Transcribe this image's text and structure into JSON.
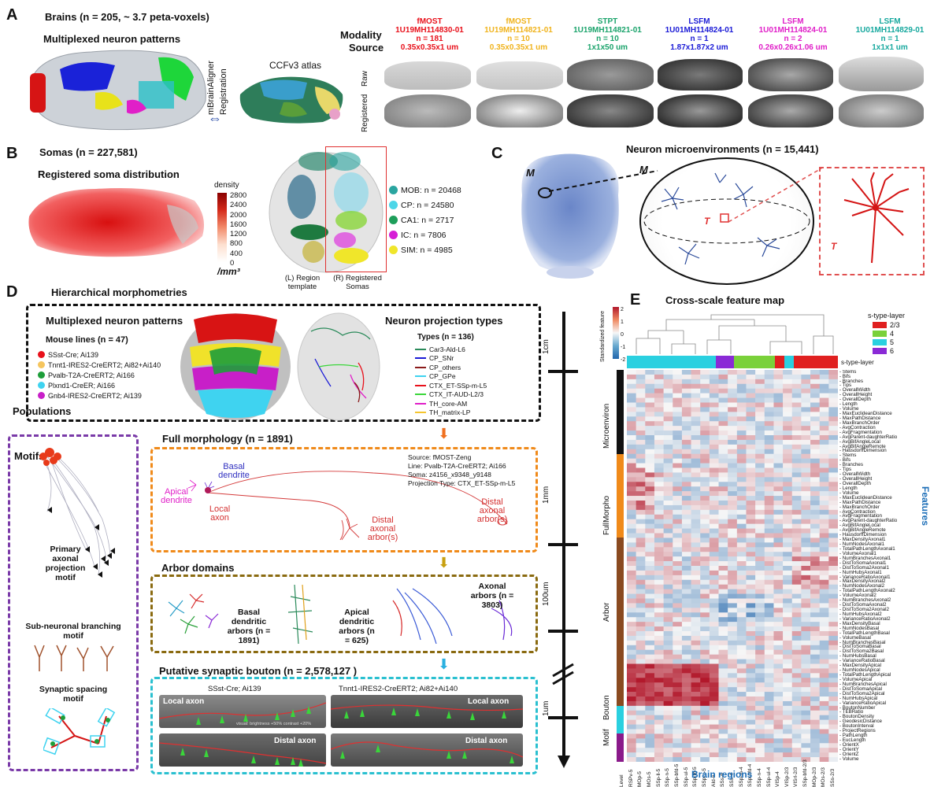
{
  "panels": {
    "A": {
      "letter": "A",
      "brains_title": "Brains (n = 205, ~ 3.7 peta-voxels)",
      "multiplexed": "Multiplexed neuron patterns",
      "mbrain": "mBrainAligner",
      "registration": "Registration",
      "atlas": "CCFv3 atlas",
      "modality": "Modality",
      "source": "Source",
      "raw": "Raw",
      "registered": "Registered",
      "sources": [
        {
          "modality": "fMOST",
          "id": "1U19MH114830-01",
          "n": "n = 181",
          "res": "0.35x0.35x1 um",
          "color": "#e8111b"
        },
        {
          "modality": "fMOST",
          "id": "1U19MH114821-01",
          "n": "n = 10",
          "res": "0.35x0.35x1 um",
          "color": "#f0b31c"
        },
        {
          "modality": "STPT",
          "id": "1U19MH114821-01",
          "n": "n = 10",
          "res": "1x1x50 um",
          "color": "#1aa36b"
        },
        {
          "modality": "LSFM",
          "id": "1U01MH114824-01",
          "n": "n = 1",
          "res": "1.87x1.87x2 um",
          "color": "#1a1ad6"
        },
        {
          "modality": "LSFM",
          "id": "1U01MH114824-01",
          "n": "n = 2",
          "res": "0.26x0.26x1.06 um",
          "color": "#e01fc8"
        },
        {
          "modality": "LSFM",
          "id": "1U01MH114829-01",
          "n": "n = 1",
          "res": "1x1x1 um",
          "color": "#16a89e"
        }
      ]
    },
    "B": {
      "letter": "B",
      "somas_title": "Somas (n = 227,581)",
      "registered_title": "Registered soma distribution",
      "density": "density",
      "ticks": [
        "2800",
        "2400",
        "2000",
        "1600",
        "1200",
        "800",
        "400",
        "0"
      ],
      "unit": "/mm³",
      "left_label": "(L) Region template",
      "right_label": "(R) Registered Somas",
      "regions": [
        {
          "label": "MOB: n = 20468",
          "color": "#2aa5a0"
        },
        {
          "label": "CP: n = 24580",
          "color": "#4dd6e8"
        },
        {
          "label": "CA1: n = 2717",
          "color": "#1e9e5a"
        },
        {
          "label": "IC: n = 7806",
          "color": "#d61fd6"
        },
        {
          "label": "SIM: n = 4985",
          "color": "#f0e62a"
        }
      ]
    },
    "C": {
      "letter": "C",
      "title": "Neuron microenvironments (n = 15,441)",
      "m1": "M",
      "m2": "M",
      "t1": "T",
      "t2": "T"
    },
    "D": {
      "letter": "D",
      "title": "Hierarchical morphometries",
      "multiplexed": "Multiplexed neuron patterns",
      "mouse_lines_title": "Mouse lines (n = 47)",
      "mouse_lines": [
        {
          "label": "SSst-Cre; Ai139",
          "color": "#e8111b"
        },
        {
          "label": "Tnnt1-IRES2-CreERT2; Ai82+Ai140",
          "color": "#f5c55e"
        },
        {
          "label": "Pvalb-T2A-CreERT2; Ai166",
          "color": "#1e9e3a"
        },
        {
          "label": "Plxnd1-CreER; Ai166",
          "color": "#3fd3f0"
        },
        {
          "label": "Gnb4-IRES2-CreERT2; Ai139",
          "color": "#c81fc8"
        }
      ],
      "populations": "Populations",
      "projection_title": "Neuron projection types",
      "types_title": "Types (n = 136)",
      "types": [
        {
          "label": "Car3-Ald-L6",
          "color": "#2a8a5a"
        },
        {
          "label": "CP_SNr",
          "color": "#1a1ad6"
        },
        {
          "label": "CP_others",
          "color": "#8a1a1a"
        },
        {
          "label": "CP_GPe",
          "color": "#3fd3f0"
        },
        {
          "label": "CTX_ET-SSp-m-L5",
          "color": "#e8111b"
        },
        {
          "label": "CTX_IT-AUD-L2/3",
          "color": "#3ad63a"
        },
        {
          "label": "TH_core-AM",
          "color": "#e01fc8"
        },
        {
          "label": "TH_matrix-LP",
          "color": "#f5c52e"
        }
      ],
      "motifs": "Motifs",
      "primary_motif": "Primary axonal projection motif",
      "sub_motif": "Sub-neuronal branching motif",
      "synaptic_motif": "Synaptic spacing motif",
      "full_title": "Full morphology (n = 1891)",
      "apical": "Apical dendrite",
      "basal": "Basal dendrite",
      "local_axon": "Local axon",
      "distal_arbor": "Distal axonal arbor(s)",
      "distal_arbor2": "Distal axonal arbor(s)",
      "info": [
        "Source: fMOST-Zeng",
        "Line: Pvalb-T2A-CreERT2; Ai166",
        "Soma: z4156_x9348_y9148",
        "Projection Type: CTX_ET-SSp-m-L5"
      ],
      "arbor_title": "Arbor domains",
      "basal_arbors": "Basal dendritic arbors (n = 1891)",
      "apical_arbors": "Apical dendritic arbors (n = 625)",
      "axonal_arbors": "Axonal arbors (n = 3803)",
      "bouton_title": "Putative synaptic bouton (n = 2,578,127 )",
      "bouton_left_line": "SSst-Cre; Ai139",
      "bouton_right_line": "Tnnt1-IRES2-CreERT2; Ai82+Ai140",
      "local_axon_a": "Local axon",
      "local_axon_b": "Local axon",
      "distal_axon_a": "Distal axon",
      "distal_axon_b": "Distal axon",
      "visual_note": "visual: brightness +50% contrast +20%",
      "scale": [
        "1cm",
        "1mm",
        "100um",
        "1um"
      ]
    },
    "E": {
      "letter": "E",
      "title": "Cross-scale feature map",
      "cbar_label": "Standardized feature",
      "cbar_ticks": [
        "2",
        "1",
        "0",
        "-1",
        "-2"
      ],
      "legend_title": "s-type-layer",
      "legend": [
        {
          "label": "2/3",
          "color": "#e02020"
        },
        {
          "label": "4",
          "color": "#7ad13a"
        },
        {
          "label": "5",
          "color": "#2ad0e0"
        },
        {
          "label": "6",
          "color": "#8a2ad6"
        }
      ],
      "stype_label": "s-type-layer",
      "features_label": "Features",
      "regions_label": "Brain regions",
      "groups": [
        {
          "label": "Microenviron",
          "color": "#111111"
        },
        {
          "label": "FullMorpho",
          "color": "#f08a1a"
        },
        {
          "label": "Arbor",
          "color": "#8a4a20"
        },
        {
          "label": "Bouton",
          "color": "#2ad0e0"
        },
        {
          "label": "Motif",
          "color": "#8a1a8a"
        }
      ],
      "columns": [
        "Level",
        "RSPv-5",
        "MOp-5",
        "MOs-5",
        "SSp-ll-5",
        "SSp-n-5",
        "SSp-bfd-5",
        "SSp-ul-5",
        "SSp-m-5",
        "SSp-n-5",
        "AId-6",
        "SSs-6",
        "SSs-4",
        "SSp-m-4",
        "SSp-bfd-4",
        "SSp-n-4",
        "SSp-ul-4",
        "VISp-4",
        "VISp-2/3",
        "VISrl-2/3",
        "SSp-bfd-2/3",
        "MOp-2/3",
        "MOs-2/3",
        "SSs-2/3"
      ],
      "features": [
        "Stems",
        "Bifs",
        "Branches",
        "Tips",
        "OverallWidth",
        "OverallHeight",
        "OverallDepth",
        "Length",
        "Volume",
        "MaxEuclideanDistance",
        "MaxPathDistance",
        "MaxBranchOrder",
        "AvgContraction",
        "AvgFragmentation",
        "AvgParent-daughterRatio",
        "AvgBifAngleLocal",
        "AvgBifAngleRemote",
        "HausdorffDimension",
        "Stems",
        "Bifs",
        "Branches",
        "Tips",
        "OverallWidth",
        "OverallHeight",
        "OverallDepth",
        "Length",
        "Volume",
        "MaxEuclideanDistance",
        "MaxPathDistance",
        "MaxBranchOrder",
        "AvgContraction",
        "AvgFragmentation",
        "AvgParent-daughterRatio",
        "AvgBifAngleLocal",
        "AvgBifAngleRemote",
        "HausdorffDimension",
        "MaxDensityAxonal1",
        "NumNodesAxonal1",
        "TotalPathLengthAxonal1",
        "VolumeAxonal1",
        "NumBranchesAxonal1",
        "DistToSomaAxonal1",
        "DistToSoma2Axonal1",
        "NumHubsAxonal1",
        "VarianceRatioAxonal1",
        "MaxDensityAxonal2",
        "NumNodesAxonal2",
        "TotalPathLengthAxonal2",
        "VolumeAxonal2",
        "NumBranchesAxonal2",
        "DistToSomaAxonal2",
        "DistToSoma2Axonal2",
        "NumHubsAxonal2",
        "VarianceRatioAxonal2",
        "MaxDensityBasal",
        "NumNodesBasal",
        "TotalPathLengthBasal",
        "VolumeBasal",
        "NumBranchesBasal",
        "DistToSomaBasal",
        "DistToSoma2Basal",
        "NumHubsBasal",
        "VarianceRatioBasal",
        "MaxDensityApical",
        "NumNodesApical",
        "TotalPathLengthApical",
        "VolumeApical",
        "NumBranchesApical",
        "DistToSomaApical",
        "DistToSoma2Apical",
        "NumHubsApical",
        "VarianceRatioApical",
        "BoutonNumber",
        "TEBRatio",
        "BoutonDensity",
        "GeodesicDistance",
        "BoutonInterval",
        "ProjectRegions",
        "PathLength",
        "EucLength",
        "OrientX",
        "OrientY",
        "OrientZ",
        "Volume"
      ]
    }
  }
}
